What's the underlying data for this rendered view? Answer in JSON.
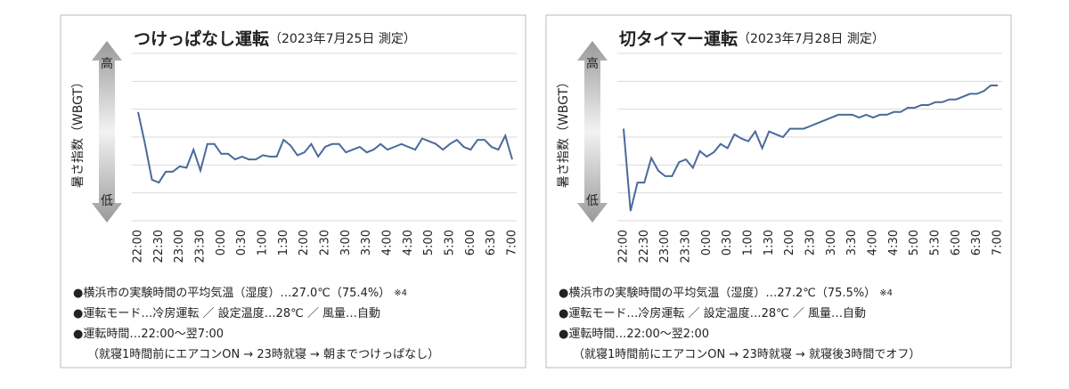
{
  "chart_data": [
    {
      "type": "line",
      "title": "つけっぱなし運転",
      "subtitle": "（2023年7月25日 測定）",
      "y_label": "暑さ指数（WBGT）",
      "y_high": "高",
      "y_low": "低",
      "categories": [
        "22:00",
        null,
        null,
        "22:30",
        null,
        null,
        "23:00",
        null,
        null,
        "23:30",
        null,
        null,
        "0:00",
        null,
        null,
        "0:30",
        null,
        null,
        "1:00",
        null,
        null,
        "1:30",
        null,
        null,
        "2:00",
        null,
        null,
        "2:30",
        null,
        null,
        "3:00",
        null,
        null,
        "3:30",
        null,
        null,
        "4:00",
        null,
        null,
        "4:30",
        null,
        null,
        "5:00",
        null,
        null,
        "5:30",
        null,
        null,
        "6:00",
        null,
        null,
        "6:30",
        null,
        null,
        "7:00"
      ],
      "values": [
        3.9,
        2.75,
        1.47,
        1.37,
        1.76,
        1.76,
        1.95,
        1.9,
        2.55,
        1.8,
        2.75,
        2.75,
        2.4,
        2.4,
        2.2,
        2.3,
        2.2,
        2.2,
        2.35,
        2.3,
        2.3,
        2.9,
        2.7,
        2.35,
        2.45,
        2.75,
        2.3,
        2.65,
        2.75,
        2.75,
        2.45,
        2.55,
        2.65,
        2.45,
        2.55,
        2.75,
        2.55,
        2.65,
        2.75,
        2.65,
        2.55,
        2.95,
        2.85,
        2.75,
        2.55,
        2.75,
        2.9,
        2.65,
        2.55,
        2.9,
        2.9,
        2.65,
        2.55,
        3.05,
        2.2
      ],
      "color": "#4a6a9a",
      "ylim": [
        0,
        6
      ],
      "yticks": [
        0,
        1,
        2,
        3,
        4,
        5,
        6
      ],
      "grid": true,
      "notes": [
        "●横浜市の実験時間の平均気温（湿度）…27.0℃（75.4%）",
        "●運転モード…冷房運転 ／ 設定温度…28℃ ／ 風量…自動",
        "●運転時間…22:00～翌7:00",
        "（就寝1時間前にエアコンON → 23時就寝 → 朝までつけっぱなし）"
      ],
      "note_ref": "※4"
    },
    {
      "type": "line",
      "title": "切タイマー運転",
      "subtitle": "（2023年7月28日 測定）",
      "y_label": "暑さ指数（WBGT）",
      "y_high": "高",
      "y_low": "低",
      "categories": [
        "22:00",
        null,
        null,
        "22:30",
        null,
        null,
        "23:00",
        null,
        null,
        "23:30",
        null,
        null,
        "0:00",
        null,
        null,
        "0:30",
        null,
        null,
        "1:00",
        null,
        null,
        "1:30",
        null,
        null,
        "2:00",
        null,
        null,
        "2:30",
        null,
        null,
        "3:00",
        null,
        null,
        "3:30",
        null,
        null,
        "4:00",
        null,
        null,
        "4:30",
        null,
        null,
        "5:00",
        null,
        null,
        "5:30",
        null,
        null,
        "6:00",
        null,
        null,
        "6:30",
        null,
        null,
        "7:00"
      ],
      "values": [
        3.3,
        0.35,
        1.37,
        1.37,
        2.25,
        1.8,
        1.6,
        1.6,
        2.1,
        2.2,
        1.9,
        2.5,
        2.3,
        2.45,
        2.75,
        2.6,
        3.1,
        2.95,
        2.85,
        3.2,
        2.6,
        3.2,
        3.1,
        3.0,
        3.3,
        3.3,
        3.3,
        3.4,
        3.5,
        3.6,
        3.7,
        3.8,
        3.8,
        3.8,
        3.7,
        3.8,
        3.7,
        3.8,
        3.8,
        3.9,
        3.9,
        4.05,
        4.05,
        4.15,
        4.15,
        4.25,
        4.25,
        4.35,
        4.35,
        4.45,
        4.55,
        4.55,
        4.65,
        4.85,
        4.85
      ],
      "color": "#4a6a9a",
      "ylim": [
        0,
        6
      ],
      "yticks": [
        0,
        1,
        2,
        3,
        4,
        5,
        6
      ],
      "grid": true,
      "notes": [
        "●横浜市の実験時間の平均気温（湿度）…27.2℃（75.5%）",
        "●運転モード…冷房運転 ／ 設定温度…28℃ ／ 風量…自動",
        "●運転時間…22:00～翌2:00",
        "（就寝1時間前にエアコンON → 23時就寝 → 就寝後3時間でオフ）"
      ],
      "note_ref": "※4"
    }
  ]
}
